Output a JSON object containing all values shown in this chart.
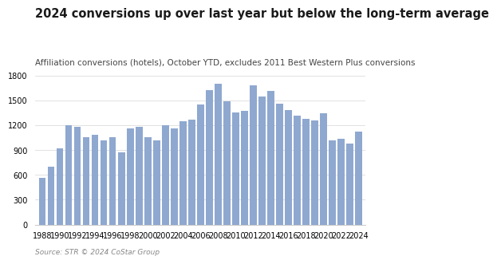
{
  "title": "2024 conversions up over last year but below the long-term average",
  "subtitle": "Affiliation conversions (hotels), October YTD, excludes 2011 Best Western Plus conversions",
  "source": "Source: STR © 2024 CoStar Group",
  "years": [
    1988,
    1989,
    1990,
    1991,
    1992,
    1993,
    1994,
    1995,
    1996,
    1997,
    1998,
    1999,
    2000,
    2001,
    2002,
    2003,
    2004,
    2005,
    2006,
    2007,
    2008,
    2009,
    2010,
    2011,
    2012,
    2013,
    2014,
    2015,
    2016,
    2017,
    2018,
    2019,
    2020,
    2021,
    2022,
    2023,
    2024
  ],
  "values": [
    560,
    700,
    920,
    1200,
    1180,
    1060,
    1090,
    1020,
    1060,
    870,
    1160,
    1180,
    1060,
    1020,
    1200,
    1160,
    1250,
    1270,
    1450,
    1630,
    1700,
    1490,
    1360,
    1380,
    1680,
    1550,
    1620,
    1460,
    1390,
    1320,
    1280,
    1260,
    1350,
    1020,
    1040,
    980,
    1120
  ],
  "bar_color": "#8fa8d0",
  "ylim": [
    0,
    1800
  ],
  "yticks": [
    0,
    300,
    600,
    900,
    1200,
    1500,
    1800
  ],
  "background_color": "#ffffff",
  "title_fontsize": 10.5,
  "subtitle_fontsize": 7.5,
  "source_fontsize": 6.5,
  "tick_fontsize": 7,
  "bar_width": 0.78
}
